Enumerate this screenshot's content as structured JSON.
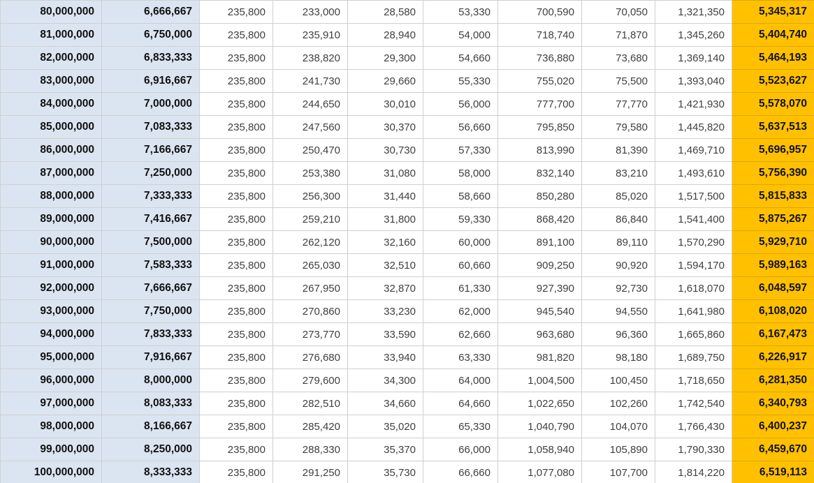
{
  "colors": {
    "left_highlight": "#dbe5f1",
    "right_highlight": "#ffc000",
    "grid": "#cfcfcf",
    "grid_right": "#dba70a",
    "text": "#3f3f3f",
    "bold_text": "#111111"
  },
  "chart_data": {
    "type": "table",
    "title": "",
    "columns": [
      "col-1",
      "col-2",
      "col-3",
      "col-4",
      "col-5",
      "col-6",
      "col-7",
      "col-8",
      "col-9",
      "col-10"
    ],
    "column_count": 10,
    "row_count": 21,
    "rows": [
      [
        "80,000,000",
        "6,666,667",
        "235,800",
        "233,000",
        "28,580",
        "53,330",
        "700,590",
        "70,050",
        "1,321,350",
        "5,345,317"
      ],
      [
        "81,000,000",
        "6,750,000",
        "235,800",
        "235,910",
        "28,940",
        "54,000",
        "718,740",
        "71,870",
        "1,345,260",
        "5,404,740"
      ],
      [
        "82,000,000",
        "6,833,333",
        "235,800",
        "238,820",
        "29,300",
        "54,660",
        "736,880",
        "73,680",
        "1,369,140",
        "5,464,193"
      ],
      [
        "83,000,000",
        "6,916,667",
        "235,800",
        "241,730",
        "29,660",
        "55,330",
        "755,020",
        "75,500",
        "1,393,040",
        "5,523,627"
      ],
      [
        "84,000,000",
        "7,000,000",
        "235,800",
        "244,650",
        "30,010",
        "56,000",
        "777,700",
        "77,770",
        "1,421,930",
        "5,578,070"
      ],
      [
        "85,000,000",
        "7,083,333",
        "235,800",
        "247,560",
        "30,370",
        "56,660",
        "795,850",
        "79,580",
        "1,445,820",
        "5,637,513"
      ],
      [
        "86,000,000",
        "7,166,667",
        "235,800",
        "250,470",
        "30,730",
        "57,330",
        "813,990",
        "81,390",
        "1,469,710",
        "5,696,957"
      ],
      [
        "87,000,000",
        "7,250,000",
        "235,800",
        "253,380",
        "31,080",
        "58,000",
        "832,140",
        "83,210",
        "1,493,610",
        "5,756,390"
      ],
      [
        "88,000,000",
        "7,333,333",
        "235,800",
        "256,300",
        "31,440",
        "58,660",
        "850,280",
        "85,020",
        "1,517,500",
        "5,815,833"
      ],
      [
        "89,000,000",
        "7,416,667",
        "235,800",
        "259,210",
        "31,800",
        "59,330",
        "868,420",
        "86,840",
        "1,541,400",
        "5,875,267"
      ],
      [
        "90,000,000",
        "7,500,000",
        "235,800",
        "262,120",
        "32,160",
        "60,000",
        "891,100",
        "89,110",
        "1,570,290",
        "5,929,710"
      ],
      [
        "91,000,000",
        "7,583,333",
        "235,800",
        "265,030",
        "32,510",
        "60,660",
        "909,250",
        "90,920",
        "1,594,170",
        "5,989,163"
      ],
      [
        "92,000,000",
        "7,666,667",
        "235,800",
        "267,950",
        "32,870",
        "61,330",
        "927,390",
        "92,730",
        "1,618,070",
        "6,048,597"
      ],
      [
        "93,000,000",
        "7,750,000",
        "235,800",
        "270,860",
        "33,230",
        "62,000",
        "945,540",
        "94,550",
        "1,641,980",
        "6,108,020"
      ],
      [
        "94,000,000",
        "7,833,333",
        "235,800",
        "273,770",
        "33,590",
        "62,660",
        "963,680",
        "96,360",
        "1,665,860",
        "6,167,473"
      ],
      [
        "95,000,000",
        "7,916,667",
        "235,800",
        "276,680",
        "33,940",
        "63,330",
        "981,820",
        "98,180",
        "1,689,750",
        "6,226,917"
      ],
      [
        "96,000,000",
        "8,000,000",
        "235,800",
        "279,600",
        "34,300",
        "64,000",
        "1,004,500",
        "100,450",
        "1,718,650",
        "6,281,350"
      ],
      [
        "97,000,000",
        "8,083,333",
        "235,800",
        "282,510",
        "34,660",
        "64,660",
        "1,022,650",
        "102,260",
        "1,742,540",
        "6,340,793"
      ],
      [
        "98,000,000",
        "8,166,667",
        "235,800",
        "285,420",
        "35,020",
        "65,330",
        "1,040,790",
        "104,070",
        "1,766,430",
        "6,400,237"
      ],
      [
        "99,000,000",
        "8,250,000",
        "235,800",
        "288,330",
        "35,370",
        "66,000",
        "1,058,940",
        "105,890",
        "1,790,330",
        "6,459,670"
      ],
      [
        "100,000,000",
        "8,333,333",
        "235,800",
        "291,250",
        "35,730",
        "66,660",
        "1,077,080",
        "107,700",
        "1,814,220",
        "6,519,113"
      ]
    ]
  }
}
